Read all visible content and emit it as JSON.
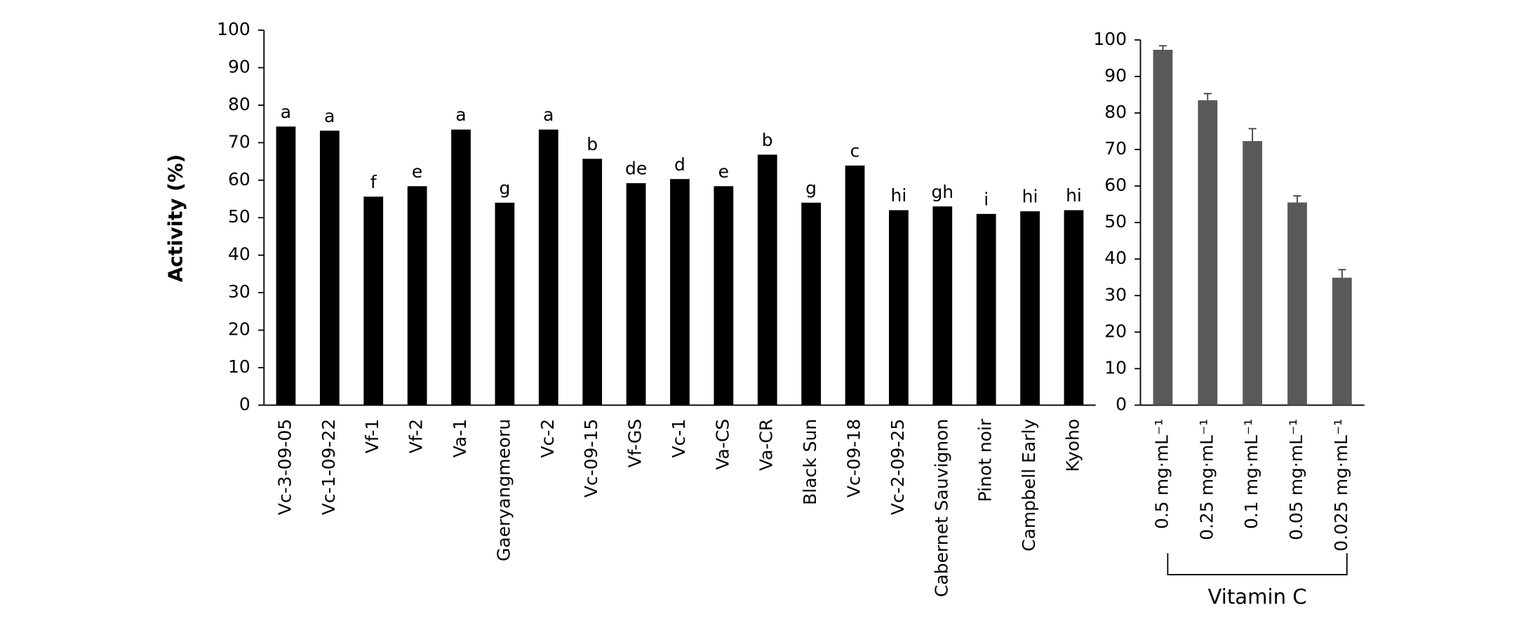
{
  "chart_data": [
    {
      "type": "bar",
      "y_label": "Activity (%)",
      "categories": [
        "Vc-3-09-05",
        "Vc-1-09-22",
        "Vf-1",
        "Vf-2",
        "Va-1",
        "Gaeryangmeoru",
        "Vc-2",
        "Vc-09-15",
        "Vf-GS",
        "Vc-1",
        "Va-CS",
        "Va-CR",
        "Black Sun",
        "Vc-09-18",
        "Vc-2-09-25",
        "Cabernet Sauvignon",
        "Pinot noir",
        "Campbell Early",
        "Kyoho"
      ],
      "values": [
        74.3,
        73.2,
        55.6,
        58.4,
        73.5,
        54,
        73.5,
        65.7,
        59.2,
        60.3,
        58.4,
        66.8,
        54,
        63.9,
        52,
        53,
        51,
        51.7,
        52
      ],
      "letters": [
        "a",
        "a",
        "f",
        "e",
        "a",
        "g",
        "a",
        "b",
        "de",
        "d",
        "e",
        "b",
        "g",
        "c",
        "hi",
        "gh",
        "i",
        "hi",
        "hi"
      ],
      "color": "#000000",
      "ylim": [
        0,
        100
      ],
      "yticks": [
        0,
        10,
        20,
        30,
        40,
        50,
        60,
        70,
        80,
        90,
        100
      ]
    },
    {
      "type": "bar",
      "group_label": "Vitamin C",
      "categories": [
        "0.5 mg·mL⁻¹",
        "0.25 mg·mL⁻¹",
        "0.1 mg·mL⁻¹",
        "0.05 mg·mL⁻¹",
        "0.025 mg·mL⁻¹"
      ],
      "values": [
        97.3,
        83.5,
        72.3,
        55.5,
        34.9
      ],
      "errors": [
        1.1,
        1.8,
        3.4,
        1.8,
        2.2
      ],
      "color": "#595959",
      "ylim": [
        0,
        100
      ],
      "yticks": [
        0,
        10,
        20,
        30,
        40,
        50,
        60,
        70,
        80,
        90,
        100
      ]
    }
  ]
}
